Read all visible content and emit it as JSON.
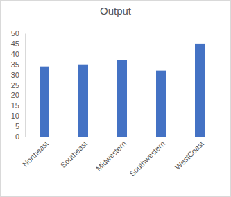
{
  "chart_data": {
    "type": "bar",
    "title": "Output",
    "categories": [
      "Northeast",
      "Southeast",
      "Midwestern",
      "Southwestern",
      "WestCoast"
    ],
    "values": [
      34,
      35,
      37,
      32,
      45
    ],
    "color": "#4472c4",
    "ylim": [
      0,
      50
    ],
    "yticks": [
      0,
      5,
      10,
      15,
      20,
      25,
      30,
      35,
      40,
      45,
      50
    ],
    "grid": false
  }
}
